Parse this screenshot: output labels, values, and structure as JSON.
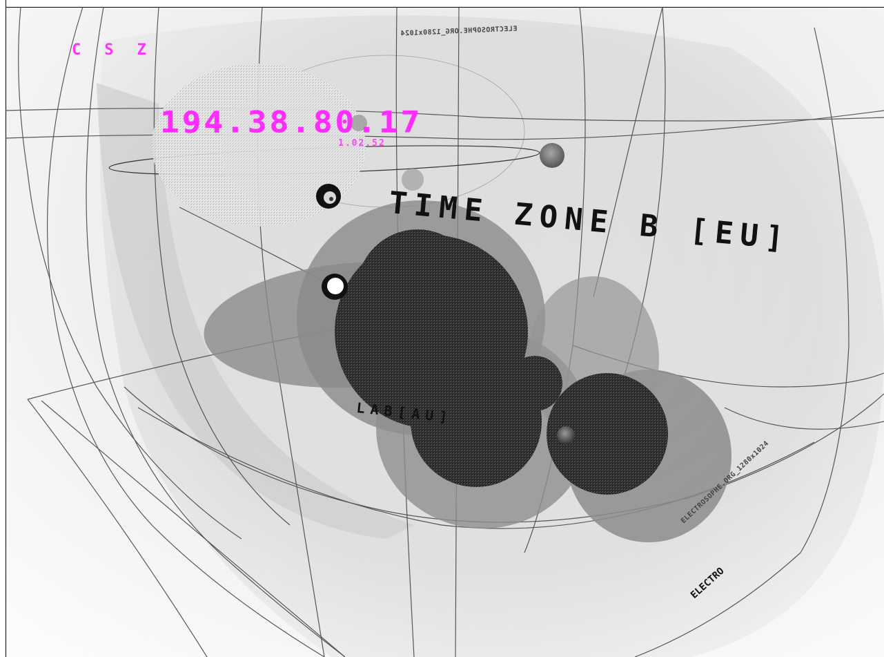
{
  "scene": {
    "indicators": [
      "C",
      "S",
      "Z"
    ],
    "ip_address": "194.38.80.17",
    "ip_sublabel": "1.02.52",
    "zone_label": "TIME ZONE B [EU]",
    "lab_label": "LAB[AU]",
    "top_curve_label": "ELECTROSOPHE.ORG_1280x1024",
    "right_curve_label": "ELECTROSOPHE.ORG_1280x1024",
    "right_bold_label": "ELECTRO",
    "colors": {
      "accent_magenta": "#ff2cff",
      "label_dark": "#111111",
      "sphere_dark": "#2a2a2a",
      "halo_gray": "#8a8a8a",
      "grid_line": "#3a3a3a",
      "background": "#ffffff"
    }
  }
}
